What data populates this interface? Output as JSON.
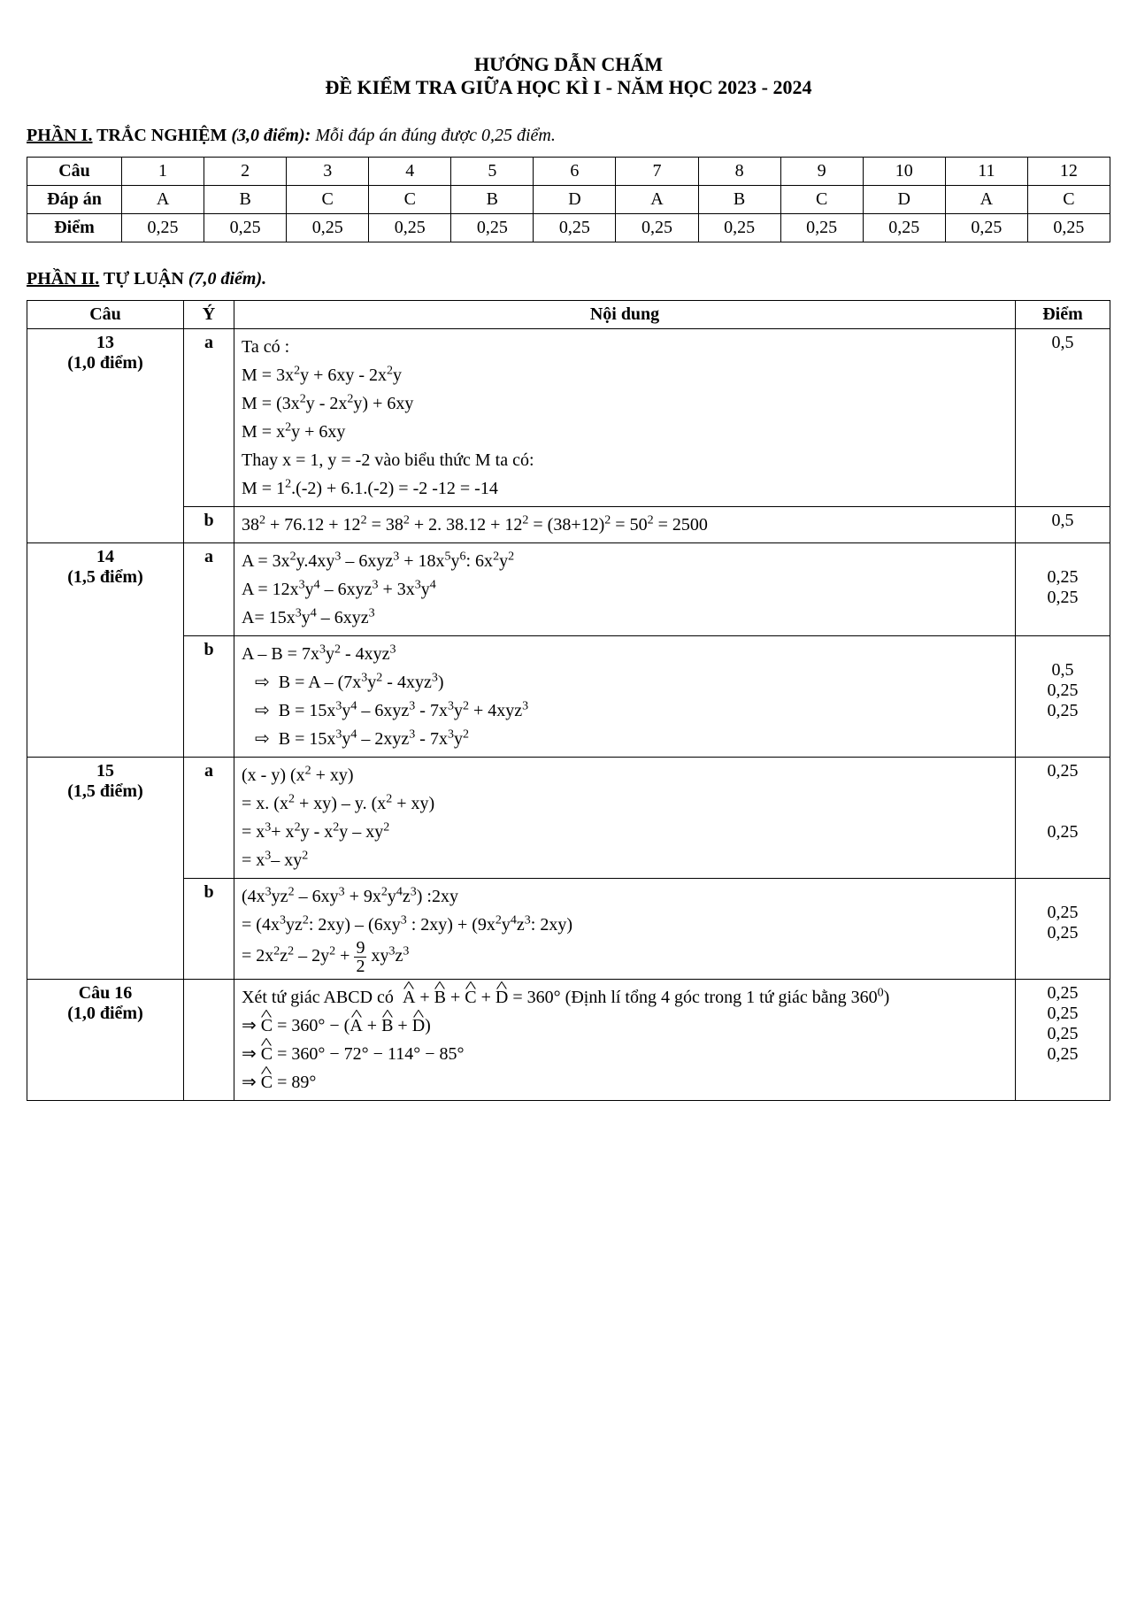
{
  "title": {
    "line1": "HƯỚNG DẪN CHẤM",
    "line2": "ĐỀ KIỂM TRA GIỮA HỌC KÌ I - NĂM HỌC 2023 - 2024"
  },
  "part1": {
    "heading_underline": "PHẦN I.",
    "heading_bold": " TRẮC NGHIỆM ",
    "heading_italic": "(3,0 điểm):",
    "heading_tail_italic": " Mỗi đáp án đúng được 0,25 điểm.",
    "table": {
      "row_labels": [
        "Câu",
        "Đáp án",
        "Điểm"
      ],
      "cols": [
        "1",
        "2",
        "3",
        "4",
        "5",
        "6",
        "7",
        "8",
        "9",
        "10",
        "11",
        "12"
      ],
      "answers": [
        "A",
        "B",
        "C",
        "C",
        "B",
        "D",
        "A",
        "B",
        "C",
        "D",
        "A",
        "C"
      ],
      "points": [
        "0,25",
        "0,25",
        "0,25",
        "0,25",
        "0,25",
        "0,25",
        "0,25",
        "0,25",
        "0,25",
        "0,25",
        "0,25",
        "0,25"
      ]
    }
  },
  "part2": {
    "heading_underline": "PHẦN II.",
    "heading_bold": " TỰ LUẬN ",
    "heading_italic": "(7,0 điểm).",
    "headers": {
      "cau": "Câu",
      "y": "Ý",
      "noidung": "Nội dung",
      "diem": "Điểm"
    },
    "rows": [
      {
        "cau": "13",
        "cau_sub": "(1,0 điểm)",
        "y": "a",
        "content_html": "Ta có :<br>M = 3x<sup>2</sup>y + 6xy - 2x<sup>2</sup>y<br>M = (3x<sup>2</sup>y - 2x<sup>2</sup>y)  + 6xy<br>M = x<sup>2</sup>y + 6xy<br>Thay x = 1, y = -2 vào biểu thức M ta có:<br>M = 1<sup>2</sup>.(-2) + 6.1.(-2) = -2 -12 = -14",
        "diem": "0,5",
        "cau_rowspan": 2
      },
      {
        "y": "b",
        "content_html": "38<sup>2</sup> + 76.12 + 12<sup>2</sup> = 38<sup>2</sup> + 2. 38.12 + 12<sup>2</sup> = (38+12)<sup>2</sup> = 50<sup>2</sup> = 2500",
        "diem": "0,5"
      },
      {
        "cau": "14",
        "cau_sub": "(1,5 điểm)",
        "y": "a",
        "content_html": "A = 3x<sup>2</sup>y.4xy<sup>3</sup> – 6xyz<sup>3</sup>  + 18x<sup>5</sup>y<sup>6</sup>: 6x<sup>2</sup>y<sup>2</sup><br>A = 12x<sup>3</sup>y<sup>4</sup> – 6xyz<sup>3</sup>  + 3x<sup>3</sup>y<sup>4</sup><br>A= 15x<sup>3</sup>y<sup>4</sup> – 6xyz<sup>3</sup>",
        "diem": "<br>0,25<br>0,25",
        "cau_rowspan": 2
      },
      {
        "y": "b",
        "content_html": "A – B = 7x<sup>3</sup>y<sup>2</sup> - 4xyz<sup>3</sup><br>&nbsp;&nbsp;&nbsp;⇨&nbsp; B = A – (7x<sup>3</sup>y<sup>2</sup> - 4xyz<sup>3</sup>)<br>&nbsp;&nbsp;&nbsp;⇨&nbsp; B = 15x<sup>3</sup>y<sup>4</sup> – 6xyz<sup>3</sup>  - 7x<sup>3</sup>y<sup>2</sup> + 4xyz<sup>3</sup><br>&nbsp;&nbsp;&nbsp;⇨&nbsp; B = 15x<sup>3</sup>y<sup>4</sup> – 2xyz<sup>3</sup>  - 7x<sup>3</sup>y<sup>2</sup>",
        "diem": "<br>0,5<br>0,25<br>0,25"
      },
      {
        "cau": "15",
        "cau_sub": "(1,5 điểm)",
        "y": "a",
        "content_html": "(x - y) (x<sup>2</sup> + xy)<br>= x. (x<sup>2</sup> + xy) – y. (x<sup>2</sup> + xy)<br>= x<sup>3</sup>+ x<sup>2</sup>y - x<sup>2</sup>y – xy<sup>2</sup><br>=  x<sup>3</sup>– xy<sup>2</sup>",
        "diem": "0,25<br><br><br>0,25",
        "cau_rowspan": 2
      },
      {
        "y": "b",
        "content_html": "(4x<sup>3</sup>yz<sup>2</sup> – 6xy<sup>3</sup> + 9x<sup>2</sup>y<sup>4</sup>z<sup>3</sup>) :2xy<br>= (4x<sup>3</sup>yz<sup>2</sup>: 2xy) – (6xy<sup>3</sup> : 2xy) + (9x<sup>2</sup>y<sup>4</sup>z<sup>3</sup>: 2xy)<br>= 2x<sup>2</sup>z<sup>2</sup> – 2y<sup>2</sup> + <span class='frac'><span class='num'>9</span><span class='den'>2</span></span> xy<sup>3</sup>z<sup>3</sup>",
        "diem": "<br>0,25<br>0,25"
      },
      {
        "cau": "Câu 16",
        "cau_sub": "(1,0 điểm)",
        "y": "",
        "content_html": "Xét tứ giác ABCD có &nbsp;<span class='hat'>A</span> + <span class='hat'>B</span> + <span class='hat'>C</span> + <span class='hat'>D</span> = 360° (Định lí tổng 4 góc trong 1 tứ giác bằng 360<sup>0</sup>)<br>⇒ <span class='hat'>C</span> = 360° − (<span class='hat'>A</span> + <span class='hat'>B</span> + <span class='hat'>D</span>)<br>⇒ <span class='hat'>C</span> = 360° − 72° − 114° − 85°<br>⇒ <span class='hat'>C</span> = 89°",
        "diem": "0,25<br>0,25<br>0,25<br>0,25",
        "cau_rowspan": 1
      }
    ]
  },
  "colors": {
    "text": "#000000",
    "background": "#ffffff",
    "border": "#000000"
  },
  "fonts": {
    "family": "Times New Roman",
    "base_size_pt": 15,
    "title_size_pt": 16
  }
}
